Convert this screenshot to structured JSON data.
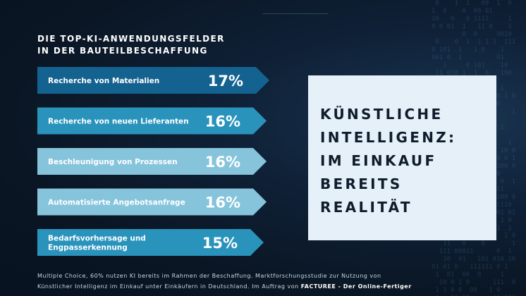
{
  "heading": {
    "line1": "DIE TOP-KI-ANWENDUNGSFELDER",
    "line2": "IN DER BAUTEILBESCHAFFUNG"
  },
  "callout": {
    "line1": "KÜNSTLICHE",
    "line2": "INTELLIGENZ:",
    "line3": "IM EINKAUF",
    "line4": "BEREITS",
    "line5": "REALITÄT"
  },
  "footnote": {
    "line1": "Multiple Choice, 60% nutzen KI bereits im Rahmen der Beschaffung. Marktforschungsstudie zur Nutzung von",
    "line2_prefix": "Künstlicher Intelligenz im Einkauf unter Einkäufern in Deutschland. Im Auftrag von ",
    "line2_brand": "FACTUREE - Der Online-Fertiger"
  },
  "colors": {
    "bar_dark": "#14628f",
    "bar_mid": "#2a93bc",
    "bar_light": "#86c4dc",
    "callout_bg": "#e6f0f9",
    "background": "#0c1a2b"
  },
  "chart_data": {
    "type": "bar",
    "orientation": "horizontal",
    "unit": "%",
    "categories": [
      "Recherche von Materialien",
      "Recherche von neuen Lieferanten",
      "Beschleunigung von Prozessen",
      "Automatisierte Angebotsanfrage",
      "Bedarfsvorhersage und Engpasserkennung"
    ],
    "category_lines": [
      [
        "Recherche von Materialien"
      ],
      [
        "Recherche von neuen Lieferanten"
      ],
      [
        "Beschleunigung von Prozessen"
      ],
      [
        "Automatisierte Angebotsanfrage"
      ],
      [
        "Bedarfsvorhersage und",
        "Engpasserkennung"
      ]
    ],
    "values": [
      17,
      16,
      16,
      16,
      15
    ],
    "value_labels": [
      "17%",
      "16%",
      "16%",
      "16%",
      "15%"
    ],
    "bar_colors": [
      "#14628f",
      "#2a93bc",
      "#86c4dc",
      "#86c4dc",
      "#2a93bc"
    ],
    "grid": false,
    "legend": "none"
  }
}
